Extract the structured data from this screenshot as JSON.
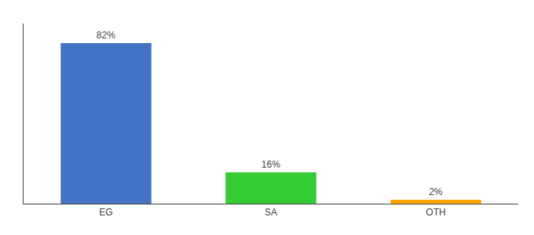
{
  "chart_data": {
    "type": "bar",
    "categories": [
      "EG",
      "SA",
      "OTH"
    ],
    "values": [
      82,
      16,
      2
    ],
    "value_labels": [
      "82%",
      "16%",
      "2%"
    ],
    "data_labels": true,
    "colors": [
      "#4472C4",
      "#33CC33",
      "#FFA500"
    ],
    "ylim": [
      0,
      92
    ],
    "tick_labels": "x",
    "grid": false
  }
}
